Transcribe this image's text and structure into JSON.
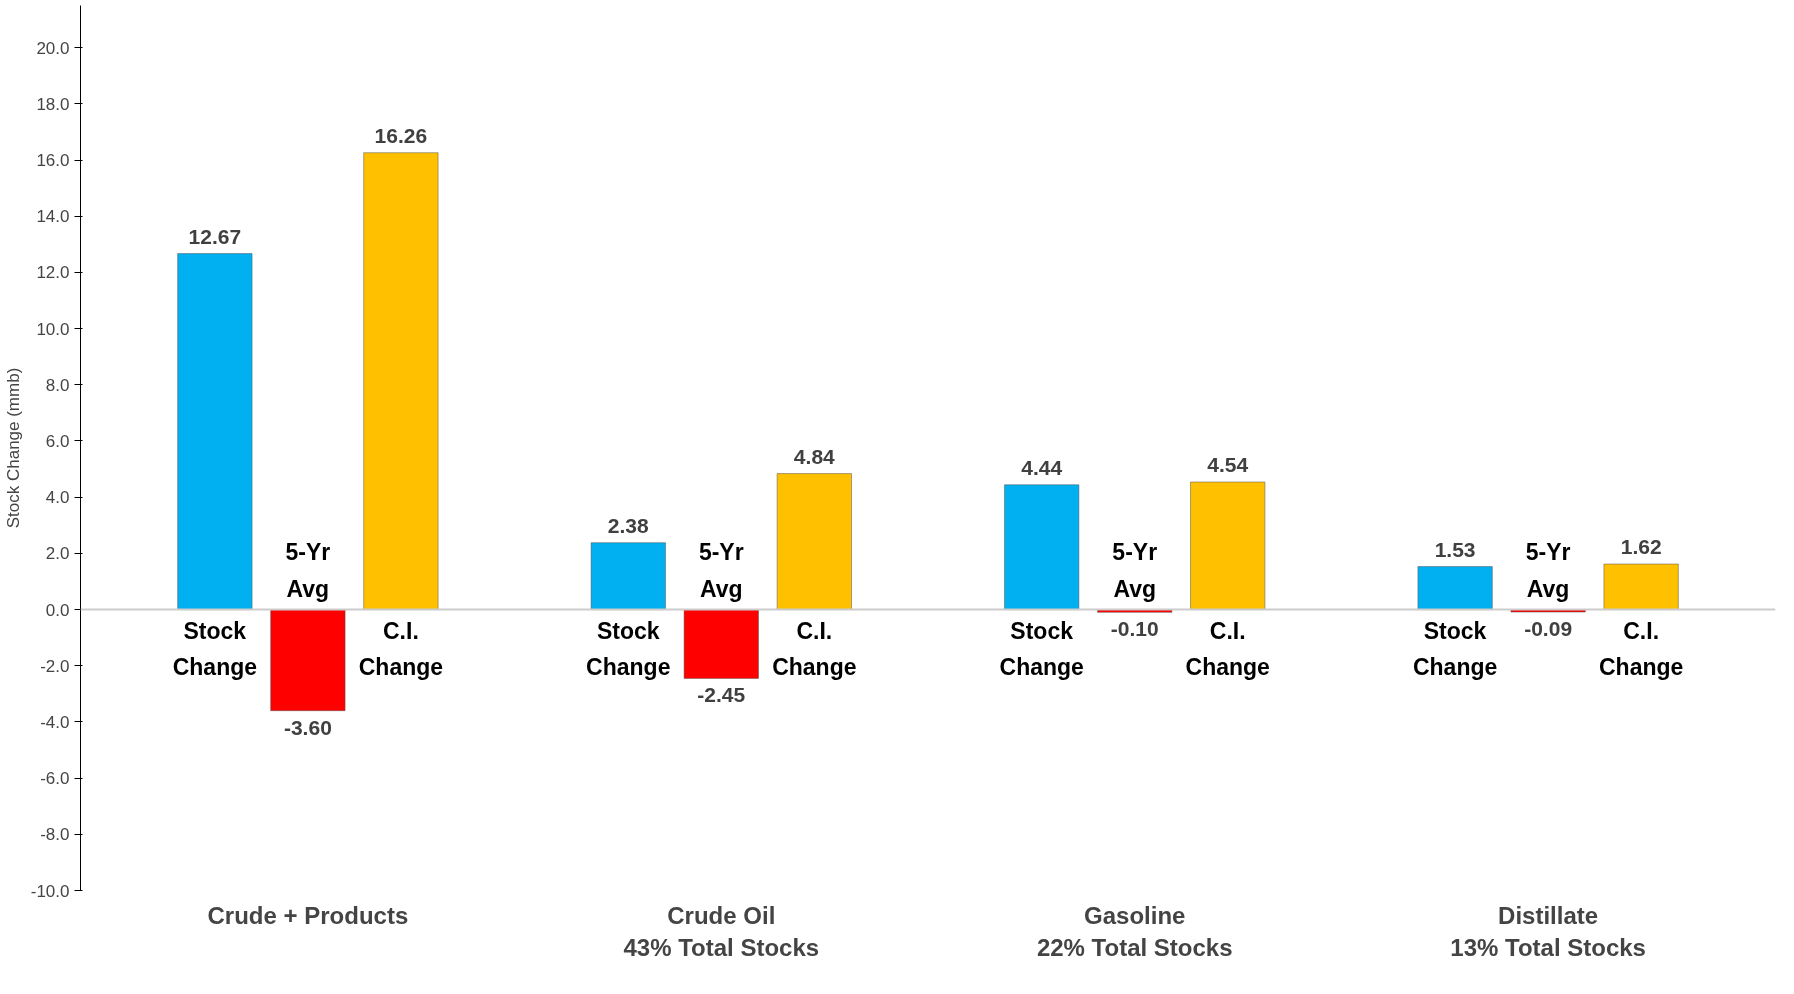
{
  "chart_data": {
    "type": "bar",
    "ylabel": "Stock Change (mmb)",
    "categories": [
      "Crude + Products",
      "Crude Oil\n43% Total Stocks",
      "Gasoline\n22% Total Stocks",
      "Distillate\n13% Total Stocks"
    ],
    "series": [
      {
        "name": "Stock Change",
        "color": "#00b0f0",
        "values": [
          12.67,
          2.38,
          4.44,
          1.53
        ],
        "value_labels": [
          "12.67",
          "2.38",
          "4.44",
          "1.53"
        ]
      },
      {
        "name": "5-Yr Avg",
        "color": "#ff0000",
        "values": [
          -3.6,
          -2.45,
          -0.1,
          -0.09
        ],
        "value_labels": [
          "-3.60",
          "-2.45",
          "-0.10",
          "-0.09"
        ]
      },
      {
        "name": "C.I. Change",
        "color": "#ffc000",
        "values": [
          16.26,
          4.84,
          4.54,
          1.62
        ],
        "value_labels": [
          "16.26",
          "4.84",
          "4.54",
          "1.62"
        ]
      }
    ],
    "ylim": [
      -10,
      21.5
    ],
    "yticks": [
      {
        "value": -10,
        "label": "-10.0"
      },
      {
        "value": -8,
        "label": "-8.0"
      },
      {
        "value": -6,
        "label": "-6.0"
      },
      {
        "value": -4,
        "label": "-4.0"
      },
      {
        "value": -2,
        "label": "-2.0"
      },
      {
        "value": 0,
        "label": "0.0"
      },
      {
        "value": 2,
        "label": "2.0"
      },
      {
        "value": 4,
        "label": "4.0"
      },
      {
        "value": 6,
        "label": "6.0"
      },
      {
        "value": 8,
        "label": "8.0"
      },
      {
        "value": 10,
        "label": "10.0"
      },
      {
        "value": 12,
        "label": "12.0"
      },
      {
        "value": 14,
        "label": "14.0"
      },
      {
        "value": 16,
        "label": "16.0"
      },
      {
        "value": 18,
        "label": "18.0"
      },
      {
        "value": 20,
        "label": "20.0"
      }
    ],
    "ref_lines": [
      {
        "axis": "y",
        "value": 0,
        "color": "#cccccc"
      }
    ],
    "legend": false
  }
}
